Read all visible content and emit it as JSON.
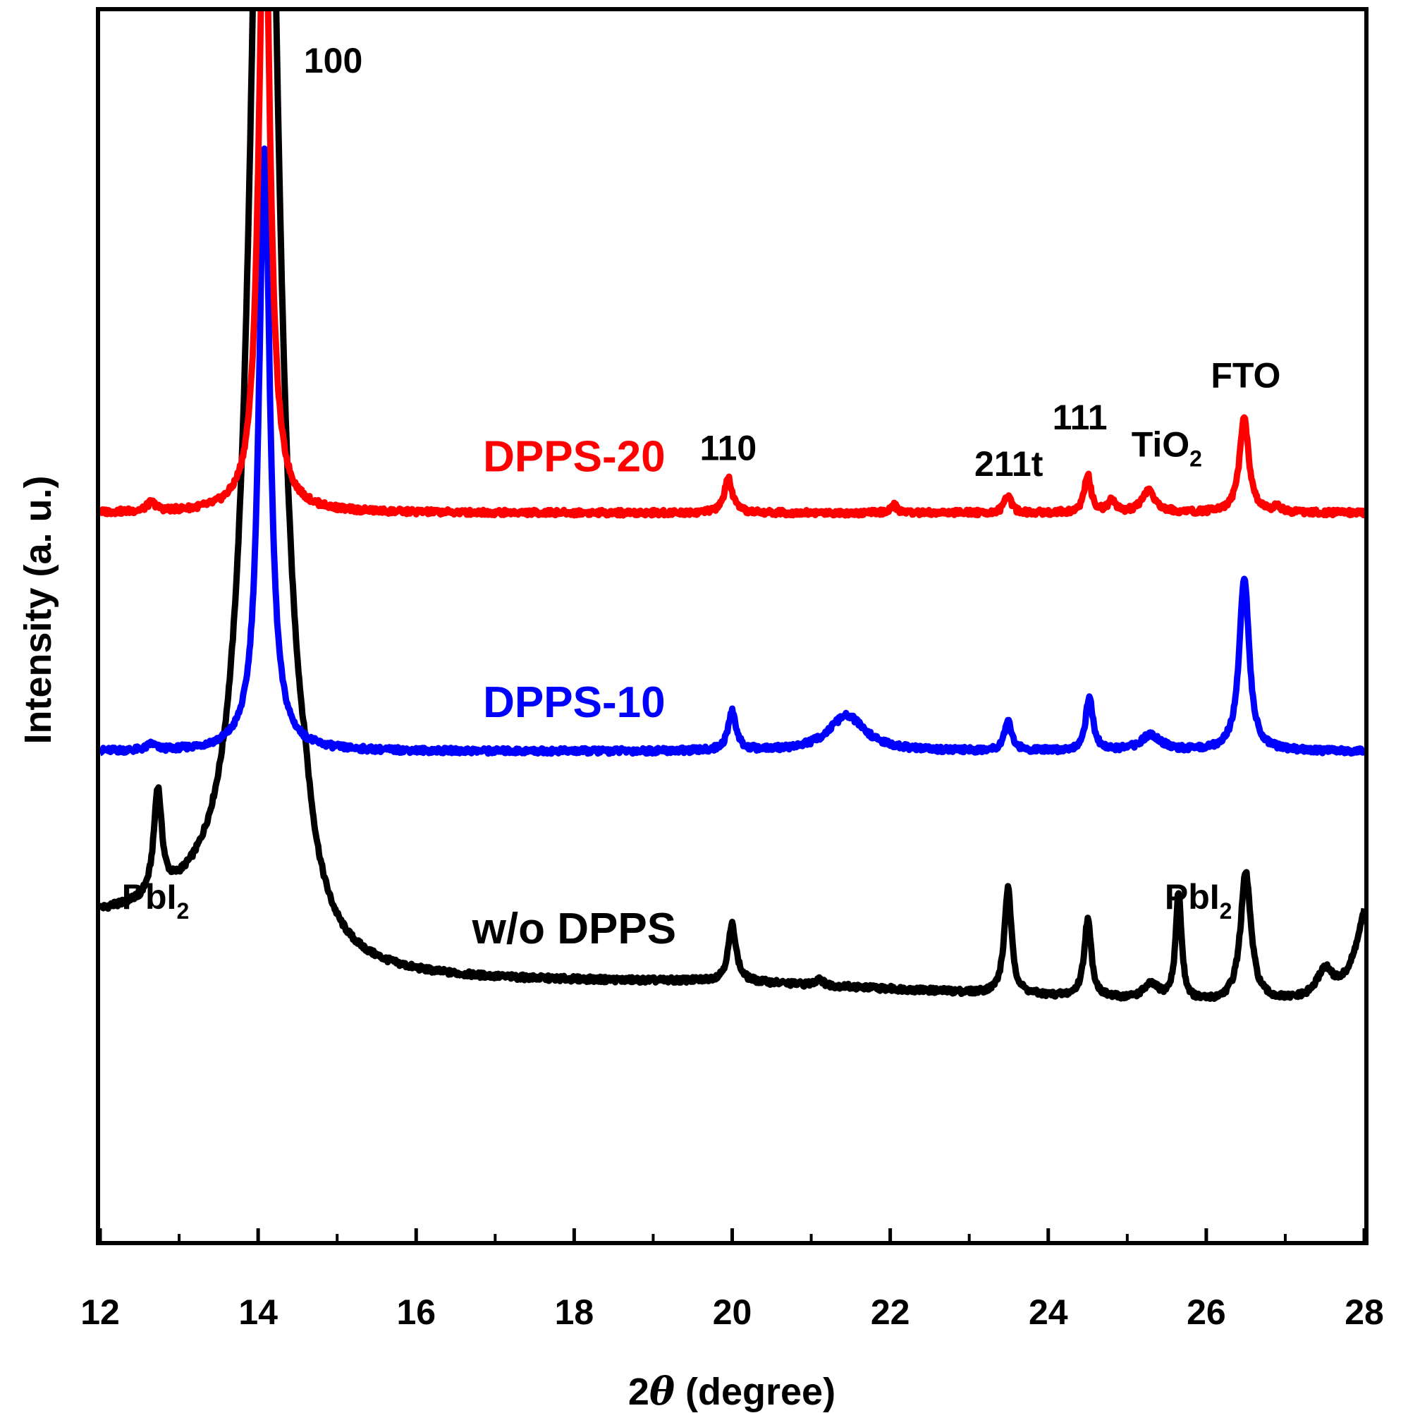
{
  "chart_data": {
    "type": "line",
    "title": "",
    "xlabel_prefix": "2",
    "xlabel_theta": "θ",
    "xlabel_suffix": " (degree)",
    "ylabel": "Intensity (a. u.)",
    "xlim": [
      12,
      28
    ],
    "ylim": [
      0,
      100
    ],
    "xticks": [
      "12",
      "14",
      "16",
      "18",
      "20",
      "22",
      "24",
      "26",
      "28"
    ],
    "grid": false,
    "series": [
      {
        "name": "w/o DPPS",
        "color": "#000000",
        "baseline": 21.0,
        "decay": {
          "amp": 5.0,
          "start": 14.6,
          "rate": 0.16
        },
        "peaks": [
          {
            "pos": 12.73,
            "height": 8.5,
            "width": 0.06
          },
          {
            "pos": 14.08,
            "height": 115.0,
            "width": 0.2
          },
          {
            "pos": 20.0,
            "height": 4.6,
            "width": 0.06
          },
          {
            "pos": 21.1,
            "height": 0.6,
            "width": 0.05
          },
          {
            "pos": 23.49,
            "height": 8.6,
            "width": 0.055
          },
          {
            "pos": 24.5,
            "height": 6.3,
            "width": 0.055
          },
          {
            "pos": 25.3,
            "height": 1.2,
            "width": 0.12
          },
          {
            "pos": 25.65,
            "height": 8.7,
            "width": 0.045
          },
          {
            "pos": 26.5,
            "height": 10.5,
            "width": 0.08
          },
          {
            "pos": 27.5,
            "height": 2.2,
            "width": 0.12
          },
          {
            "pos": 28.05,
            "height": 8.0,
            "width": 0.18
          }
        ]
      },
      {
        "name": "DPPS-10",
        "color": "#0000ff",
        "baseline": 39.8,
        "decay": {
          "amp": 0,
          "start": 14.6,
          "rate": 0.16
        },
        "peaks": [
          {
            "pos": 12.65,
            "height": 0.5,
            "width": 0.06
          },
          {
            "pos": 14.08,
            "height": 49.0,
            "width": 0.085
          },
          {
            "pos": 20.0,
            "height": 3.2,
            "width": 0.06
          },
          {
            "pos": 21.45,
            "height": 2.9,
            "width": 0.28
          },
          {
            "pos": 23.49,
            "height": 2.5,
            "width": 0.055
          },
          {
            "pos": 24.52,
            "height": 4.4,
            "width": 0.055
          },
          {
            "pos": 25.3,
            "height": 1.3,
            "width": 0.15
          },
          {
            "pos": 26.48,
            "height": 14.2,
            "width": 0.075
          }
        ]
      },
      {
        "name": "DPPS-20",
        "color": "#ff0000",
        "baseline": 59.2,
        "decay": {
          "amp": 0,
          "start": 14.6,
          "rate": 0.16
        },
        "peaks": [
          {
            "pos": 12.65,
            "height": 0.7,
            "width": 0.07
          },
          {
            "pos": 14.08,
            "height": 53.0,
            "width": 0.085
          },
          {
            "pos": 19.95,
            "height": 2.8,
            "width": 0.06
          },
          {
            "pos": 22.05,
            "height": 0.6,
            "width": 0.05
          },
          {
            "pos": 23.49,
            "height": 1.4,
            "width": 0.05
          },
          {
            "pos": 24.5,
            "height": 3.1,
            "width": 0.05
          },
          {
            "pos": 24.8,
            "height": 1.0,
            "width": 0.05
          },
          {
            "pos": 25.27,
            "height": 1.8,
            "width": 0.1
          },
          {
            "pos": 26.48,
            "height": 7.7,
            "width": 0.07
          },
          {
            "pos": 26.9,
            "height": 0.6,
            "width": 0.04
          }
        ]
      }
    ],
    "series_labels": [
      {
        "text": "DPPS-20",
        "color": "#ff0000",
        "x": 18.0,
        "y": 62.6
      },
      {
        "text": "DPPS-10",
        "color": "#0000ff",
        "x": 18.0,
        "y": 42.6
      },
      {
        "text": "w/o DPPS",
        "color": "#000000",
        "x": 18.0,
        "y": 24.2
      }
    ],
    "annotations": [
      {
        "text": "100",
        "x": 14.95,
        "y": 95.0
      },
      {
        "text": "110",
        "x": 19.95,
        "y": 63.5
      },
      {
        "text": "211t",
        "x": 23.5,
        "y": 62.2
      },
      {
        "text": "111",
        "x": 24.4,
        "y": 66.0
      },
      {
        "text": "TiO",
        "sub": "2",
        "x": 25.5,
        "y": 63.8
      },
      {
        "text": "FTO",
        "x": 26.5,
        "y": 69.4
      },
      {
        "text": "PbI",
        "sub": "2",
        "x": 12.7,
        "y": 27.0
      },
      {
        "text": "PbI",
        "sub": "2",
        "x": 25.9,
        "y": 27.0
      }
    ]
  }
}
